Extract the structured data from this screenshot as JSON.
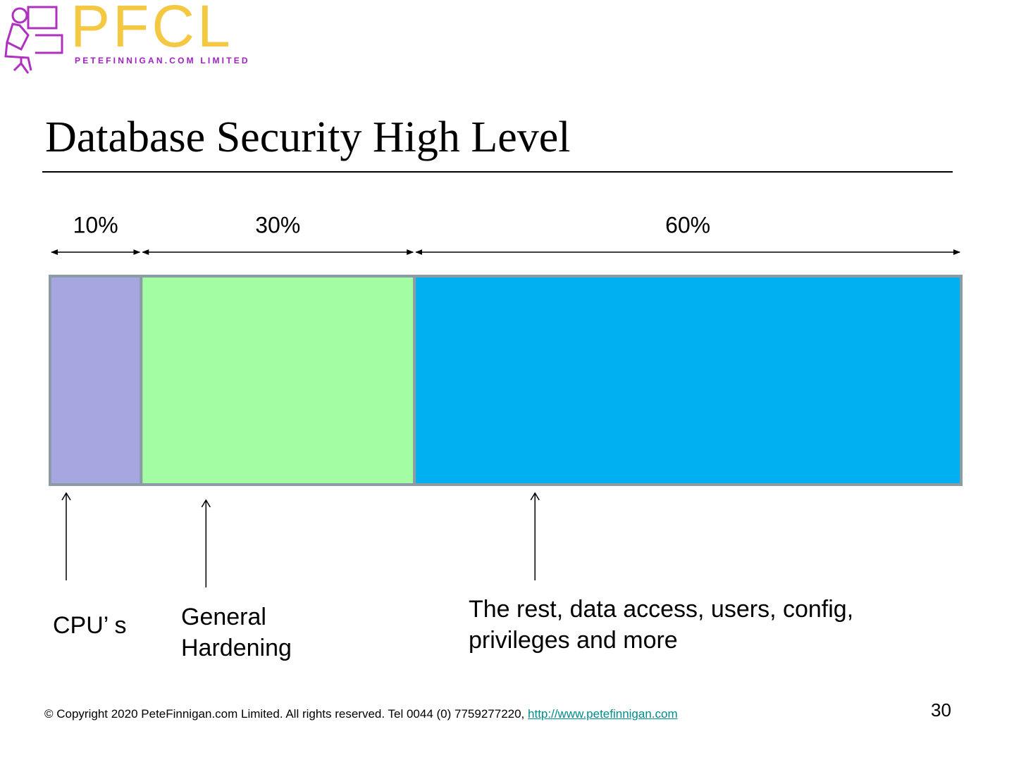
{
  "logo": {
    "name": "PFCL",
    "subtitle": "PETEFINNIGAN.COM LIMITED"
  },
  "title": "Database Security High Level",
  "chart_data": {
    "type": "bar",
    "categories": [
      "CPU’ s",
      "General Hardening",
      "The rest, data access, users, config, privileges and more"
    ],
    "values": [
      10,
      30,
      60
    ],
    "value_labels": [
      "10%",
      "30%",
      "60%"
    ],
    "colors": [
      "#a6a6e0",
      "#a3fda3",
      "#00b0f0"
    ]
  },
  "footer": {
    "copyright": "© Copyright  2020 PeteFinnigan.com Limited. All rights reserved. Tel 0044 (0) 7759277220, ",
    "link": "http://www.petefinnigan.com",
    "page": 30
  }
}
